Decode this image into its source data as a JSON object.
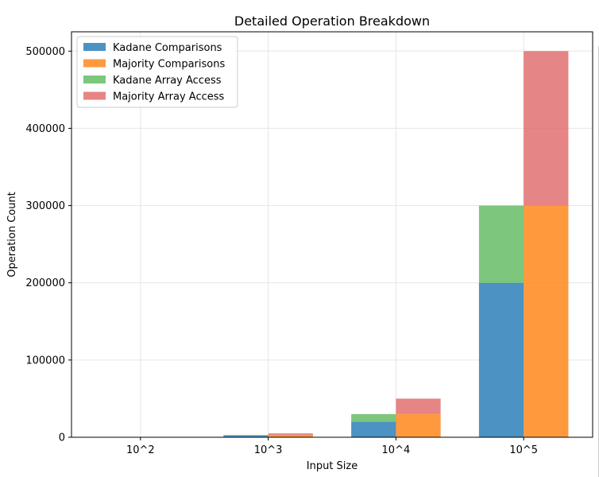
{
  "chart_data": {
    "type": "bar",
    "title": "Detailed Operation Breakdown",
    "xlabel": "Input Size",
    "ylabel": "Operation Count",
    "categories": [
      "10^2",
      "10^3",
      "10^4",
      "10^5"
    ],
    "ylim": [
      0,
      525000
    ],
    "yticks": [
      0,
      100000,
      200000,
      300000,
      400000,
      500000
    ],
    "ytick_labels": [
      "0",
      "100000",
      "200000",
      "300000",
      "400000",
      "500000"
    ],
    "grid": true,
    "legend_position": "top-left",
    "stacks": [
      {
        "group": "Kadane",
        "series": [
          {
            "name": "Kadane Comparisons",
            "color": "#1f77b4",
            "values": [
              200,
              2000,
              20000,
              200000
            ]
          },
          {
            "name": "Kadane Array Access",
            "color": "#5cb85c",
            "values": [
              100,
              1000,
              10000,
              100000
            ]
          }
        ]
      },
      {
        "group": "Majority",
        "series": [
          {
            "name": "Majority Comparisons",
            "color": "#ff7f0e",
            "values": [
              300,
              3000,
              30000,
              300000
            ]
          },
          {
            "name": "Majority Array Access",
            "color": "#e06666",
            "values": [
              200,
              2000,
              20000,
              200000
            ]
          }
        ]
      }
    ],
    "legend": [
      {
        "name": "Kadane Comparisons",
        "color": "#1f77b4"
      },
      {
        "name": "Majority Comparisons",
        "color": "#ff7f0e"
      },
      {
        "name": "Kadane Array Access",
        "color": "#5cb85c"
      },
      {
        "name": "Majority Array Access",
        "color": "#e06666"
      }
    ]
  }
}
